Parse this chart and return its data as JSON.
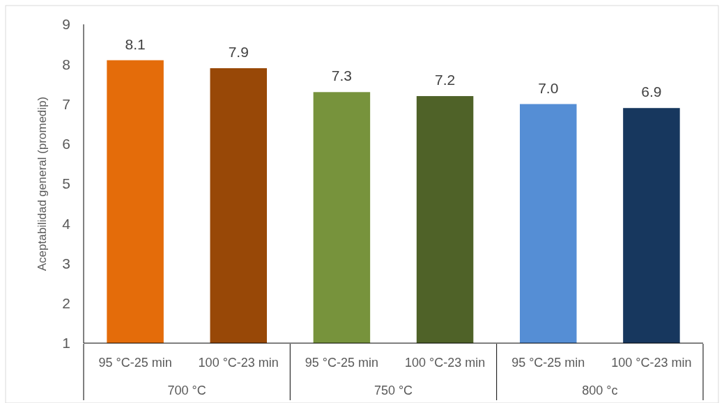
{
  "chart_data": {
    "type": "bar",
    "ylabel": "Aceptabilidad general (promedip)",
    "categories": [
      "95 °C-25 min",
      "100 °C-23 min",
      "95 °C-25 min",
      "100 °C-23 min",
      "95 °C-25 min",
      "100 °C-23 min"
    ],
    "values": [
      8.1,
      7.9,
      7.3,
      7.2,
      7.0,
      6.9
    ],
    "value_labels": [
      "8.1",
      "7.9",
      "7.3",
      "7.2",
      "7.0",
      "6.9"
    ],
    "colors": [
      "#e46c0a",
      "#984807",
      "#77933c",
      "#4f6228",
      "#558ed5",
      "#17375e"
    ],
    "ylim": [
      1,
      9
    ],
    "yticks": [
      1,
      2,
      3,
      4,
      5,
      6,
      7,
      8,
      9
    ],
    "annotations": [
      "700 °C",
      "750 °C",
      "800 °c"
    ],
    "grid": false
  }
}
